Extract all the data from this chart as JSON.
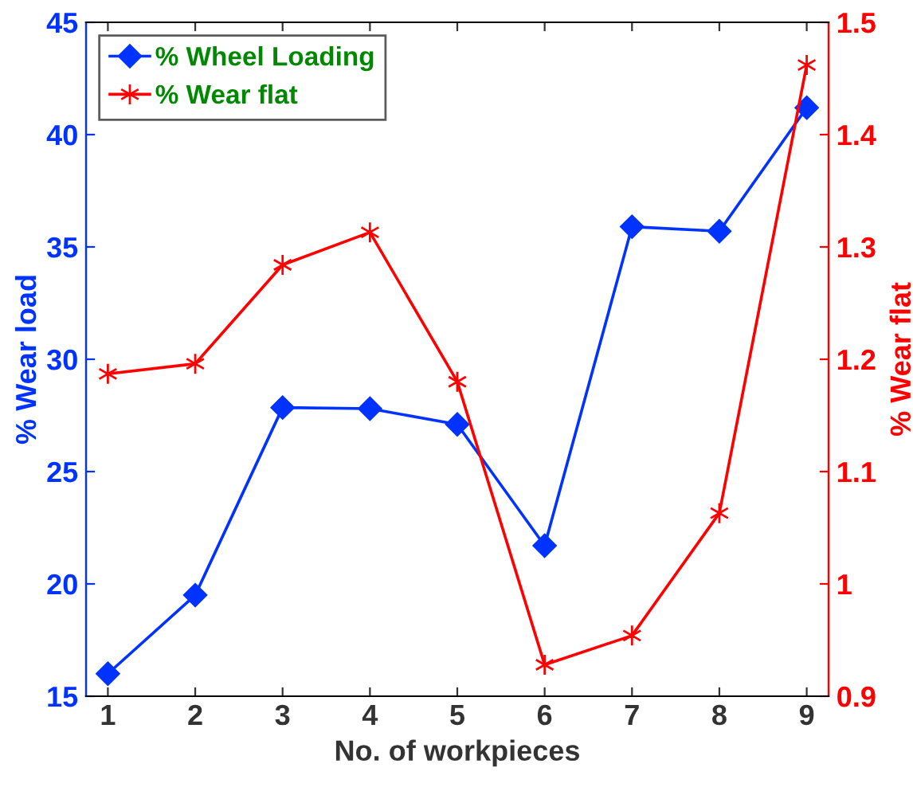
{
  "chart_data": {
    "type": "line",
    "xlabel": "No. of workpieces",
    "ylabel": "% Wear load",
    "y2label": "% Wear flat",
    "x": [
      1,
      2,
      3,
      4,
      5,
      6,
      7,
      8,
      9
    ],
    "series": [
      {
        "name": "% Wheel Loading",
        "color": "#0033ff",
        "marker": "diamond",
        "values": [
          16.0,
          19.5,
          27.85,
          27.8,
          27.1,
          21.7,
          35.9,
          35.7,
          41.2
        ]
      },
      {
        "name": "% Wear flat",
        "color": "#ff0000",
        "marker": "cross",
        "axis": "y2",
        "values": [
          1.187,
          1.196,
          1.284,
          1.313,
          1.18,
          0.928,
          0.954,
          1.063,
          1.462
        ]
      }
    ],
    "xlim": [
      0.75,
      9.25
    ],
    "xticks": [
      1,
      2,
      3,
      4,
      5,
      6,
      7,
      8,
      9
    ],
    "ylim": [
      15,
      45
    ],
    "yticks": [
      15,
      20,
      25,
      30,
      35,
      40,
      45
    ],
    "y2lim": [
      0.9,
      1.5
    ],
    "y2ticks": [
      0.9,
      1,
      1.1,
      1.2,
      1.3,
      1.4,
      1.5
    ],
    "grid": false,
    "legend": "top left",
    "line_style": "solid"
  }
}
